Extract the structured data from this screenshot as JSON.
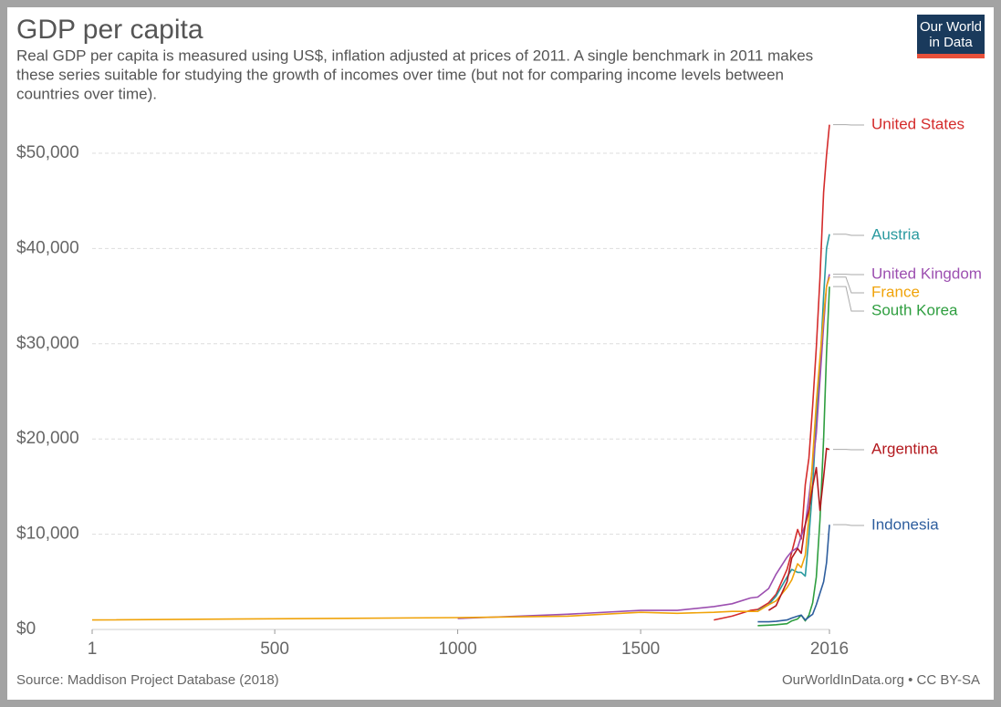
{
  "chart_data": {
    "type": "line",
    "title": "GDP per capita",
    "subtitle": [
      "Real GDP per capita is measured using US$, inflation adjusted at prices of 2011. A single benchmark in 2011 makes",
      "these series suitable for studying the growth of incomes over time (but not for comparing income levels between",
      "countries over time)."
    ],
    "logo": [
      "Our World",
      "in Data"
    ],
    "source": "Source: Maddison Project Database (2018)",
    "credit": "OurWorldInData.org • CC BY-SA",
    "x": [
      1,
      1000,
      1300,
      1500,
      1600,
      1700,
      1750,
      1800,
      1820,
      1850,
      1870,
      1900,
      1913,
      1929,
      1939,
      1950,
      1960,
      1970,
      1980,
      1990,
      2000,
      2008,
      2016
    ],
    "xlim": [
      1,
      2016
    ],
    "xticks": [
      1,
      500,
      1000,
      1500,
      2016
    ],
    "ylim": [
      0,
      53000
    ],
    "yticks": [
      {
        "value": 0,
        "label": "$0"
      },
      {
        "value": 10000,
        "label": "$10,000"
      },
      {
        "value": 20000,
        "label": "$20,000"
      },
      {
        "value": 30000,
        "label": "$30,000"
      },
      {
        "value": 40000,
        "label": "$40,000"
      },
      {
        "value": 50000,
        "label": "$50,000"
      }
    ],
    "grid": true,
    "series": [
      {
        "name": "United States",
        "color": "#d42b2b",
        "values": [
          null,
          null,
          null,
          null,
          null,
          1000,
          1400,
          2000,
          2100,
          2800,
          3700,
          6300,
          8100,
          10500,
          9500,
          15200,
          18000,
          23500,
          29600,
          36900,
          45900,
          49800,
          53000
        ]
      },
      {
        "name": "Austria",
        "color": "#2a9a9f",
        "values": [
          null,
          null,
          null,
          null,
          null,
          null,
          null,
          null,
          2000,
          2600,
          3500,
          5500,
          6300,
          6000,
          6000,
          5600,
          9700,
          15000,
          22000,
          27500,
          35000,
          40000,
          41500
        ]
      },
      {
        "name": "United Kingdom",
        "color": "#9c4fb0",
        "values": [
          null,
          1150,
          1600,
          2000,
          2000,
          2400,
          2700,
          3300,
          3400,
          4300,
          5800,
          7600,
          8200,
          8600,
          9800,
          11000,
          13900,
          17200,
          20600,
          26200,
          31900,
          36000,
          37300
        ]
      },
      {
        "name": "France",
        "color": "#f0a30a",
        "values": [
          1000,
          1250,
          1400,
          1800,
          1700,
          1800,
          1900,
          1900,
          1900,
          2600,
          3000,
          4400,
          5200,
          6900,
          6500,
          7800,
          11800,
          18000,
          23800,
          28500,
          33000,
          36000,
          37000
        ]
      },
      {
        "name": "South Korea",
        "color": "#2e9e3f",
        "values": [
          null,
          null,
          null,
          null,
          null,
          null,
          null,
          null,
          400,
          450,
          500,
          600,
          900,
          1100,
          1500,
          900,
          1500,
          2800,
          5500,
          11500,
          20000,
          29000,
          36000
        ]
      },
      {
        "name": "Argentina",
        "color": "#b3191e",
        "values": [
          null,
          null,
          null,
          null,
          null,
          null,
          null,
          null,
          null,
          2000,
          2500,
          5000,
          7500,
          8500,
          8000,
          11000,
          12500,
          15000,
          17000,
          12500,
          16000,
          19000,
          18900
        ]
      },
      {
        "name": "Indonesia",
        "color": "#2e5e9e",
        "values": [
          null,
          null,
          null,
          null,
          null,
          null,
          null,
          null,
          800,
          800,
          850,
          1000,
          1200,
          1400,
          1500,
          1000,
          1300,
          1600,
          2600,
          3800,
          5000,
          7000,
          11000
        ]
      }
    ]
  }
}
